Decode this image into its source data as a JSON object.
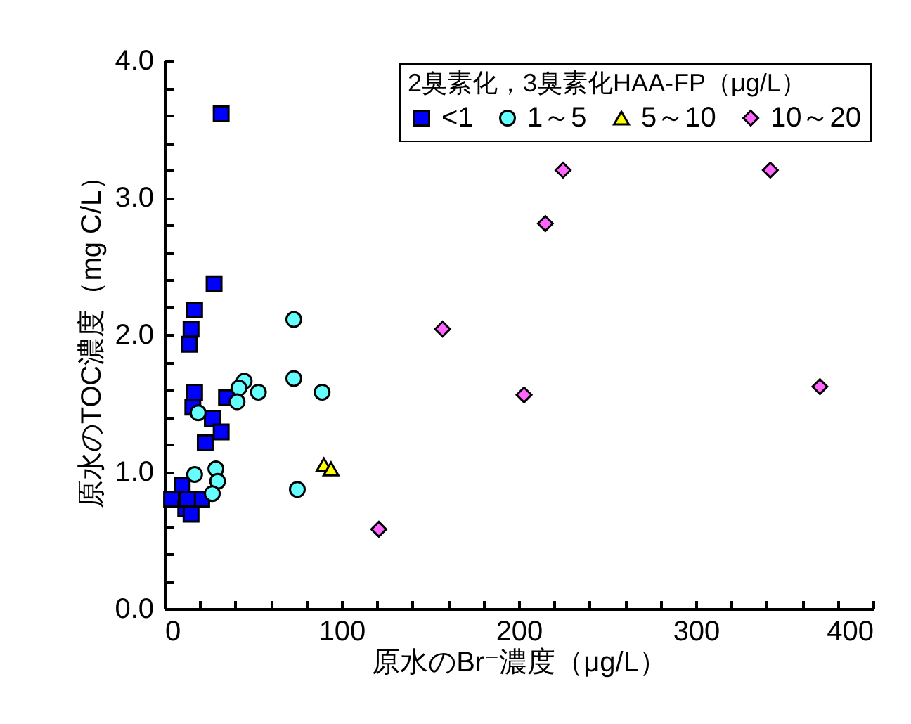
{
  "chart_data": {
    "type": "scatter",
    "xlabel": "原水のBr⁻濃度（μg/L）",
    "ylabel": "原水のTOC濃度（mg C/L）",
    "legend_title": "2臭素化，3臭素化HAA-FP（μg/L）",
    "legend": "top right",
    "grid": false,
    "xlim": [
      0,
      400
    ],
    "ylim": [
      0,
      4
    ],
    "xticks": [
      0,
      {
        "value": 20,
        "label": null
      },
      {
        "value": 40,
        "label": null
      },
      {
        "value": 60,
        "label": null
      },
      {
        "value": 80,
        "label": null
      },
      100,
      {
        "value": 120,
        "label": null
      },
      {
        "value": 140,
        "label": null
      },
      {
        "value": 160,
        "label": null
      },
      {
        "value": 180,
        "label": null
      },
      200,
      {
        "value": 220,
        "label": null
      },
      {
        "value": 240,
        "label": null
      },
      {
        "value": 260,
        "label": null
      },
      {
        "value": 280,
        "label": null
      },
      300,
      {
        "value": 320,
        "label": null
      },
      {
        "value": 340,
        "label": null
      },
      {
        "value": 360,
        "label": null
      },
      {
        "value": 380,
        "label": null
      },
      400
    ],
    "yticks": [
      {
        "value": 0,
        "label": "0.0"
      },
      {
        "value": 0.2,
        "label": null
      },
      {
        "value": 0.4,
        "label": null
      },
      {
        "value": 0.6,
        "label": null
      },
      {
        "value": 0.8,
        "label": null
      },
      {
        "value": 1,
        "label": "1.0"
      },
      {
        "value": 1.2,
        "label": null
      },
      {
        "value": 1.4,
        "label": null
      },
      {
        "value": 1.6,
        "label": null
      },
      {
        "value": 1.8,
        "label": null
      },
      {
        "value": 2,
        "label": "2.0"
      },
      {
        "value": 2.2,
        "label": null
      },
      {
        "value": 2.4,
        "label": null
      },
      {
        "value": 2.6,
        "label": null
      },
      {
        "value": 2.8,
        "label": null
      },
      {
        "value": 3,
        "label": "3.0"
      },
      {
        "value": 3.2,
        "label": null
      },
      {
        "value": 3.4,
        "label": null
      },
      {
        "value": 3.6,
        "label": null
      },
      {
        "value": 3.8,
        "label": null
      },
      {
        "value": 4,
        "label": "4.0"
      }
    ],
    "series": [
      {
        "name": "<1",
        "color": "#0000ff",
        "marker": "square",
        "x": [
          32,
          28,
          17,
          15,
          14,
          17,
          35,
          16,
          27,
          32,
          23,
          10,
          4,
          21,
          12,
          15,
          13
        ],
        "values": [
          3.61,
          2.37,
          2.18,
          2.04,
          1.93,
          1.58,
          1.54,
          1.47,
          1.39,
          1.29,
          1.21,
          0.9,
          0.8,
          0.8,
          0.73,
          0.69,
          0.8
        ]
      },
      {
        "name": "1～5",
        "color": "#66ffff",
        "marker": "circle",
        "x": [
          73,
          73,
          89,
          45,
          42,
          53,
          41,
          19,
          17,
          29,
          30,
          27,
          75
        ],
        "values": [
          2.11,
          1.68,
          1.58,
          1.66,
          1.61,
          1.58,
          1.51,
          1.43,
          0.98,
          1.02,
          0.93,
          0.84,
          0.87
        ]
      },
      {
        "name": "5～10",
        "color": "#ffff00",
        "marker": "triangle",
        "x": [
          90,
          94
        ],
        "values": [
          1.05,
          1.02
        ]
      },
      {
        "name": "10～20",
        "color": "#ff66ff",
        "marker": "diamond",
        "x": [
          121,
          157,
          203,
          370,
          215,
          225,
          342
        ],
        "values": [
          0.58,
          2.04,
          1.56,
          1.62,
          2.81,
          3.2,
          3.2
        ]
      }
    ]
  }
}
